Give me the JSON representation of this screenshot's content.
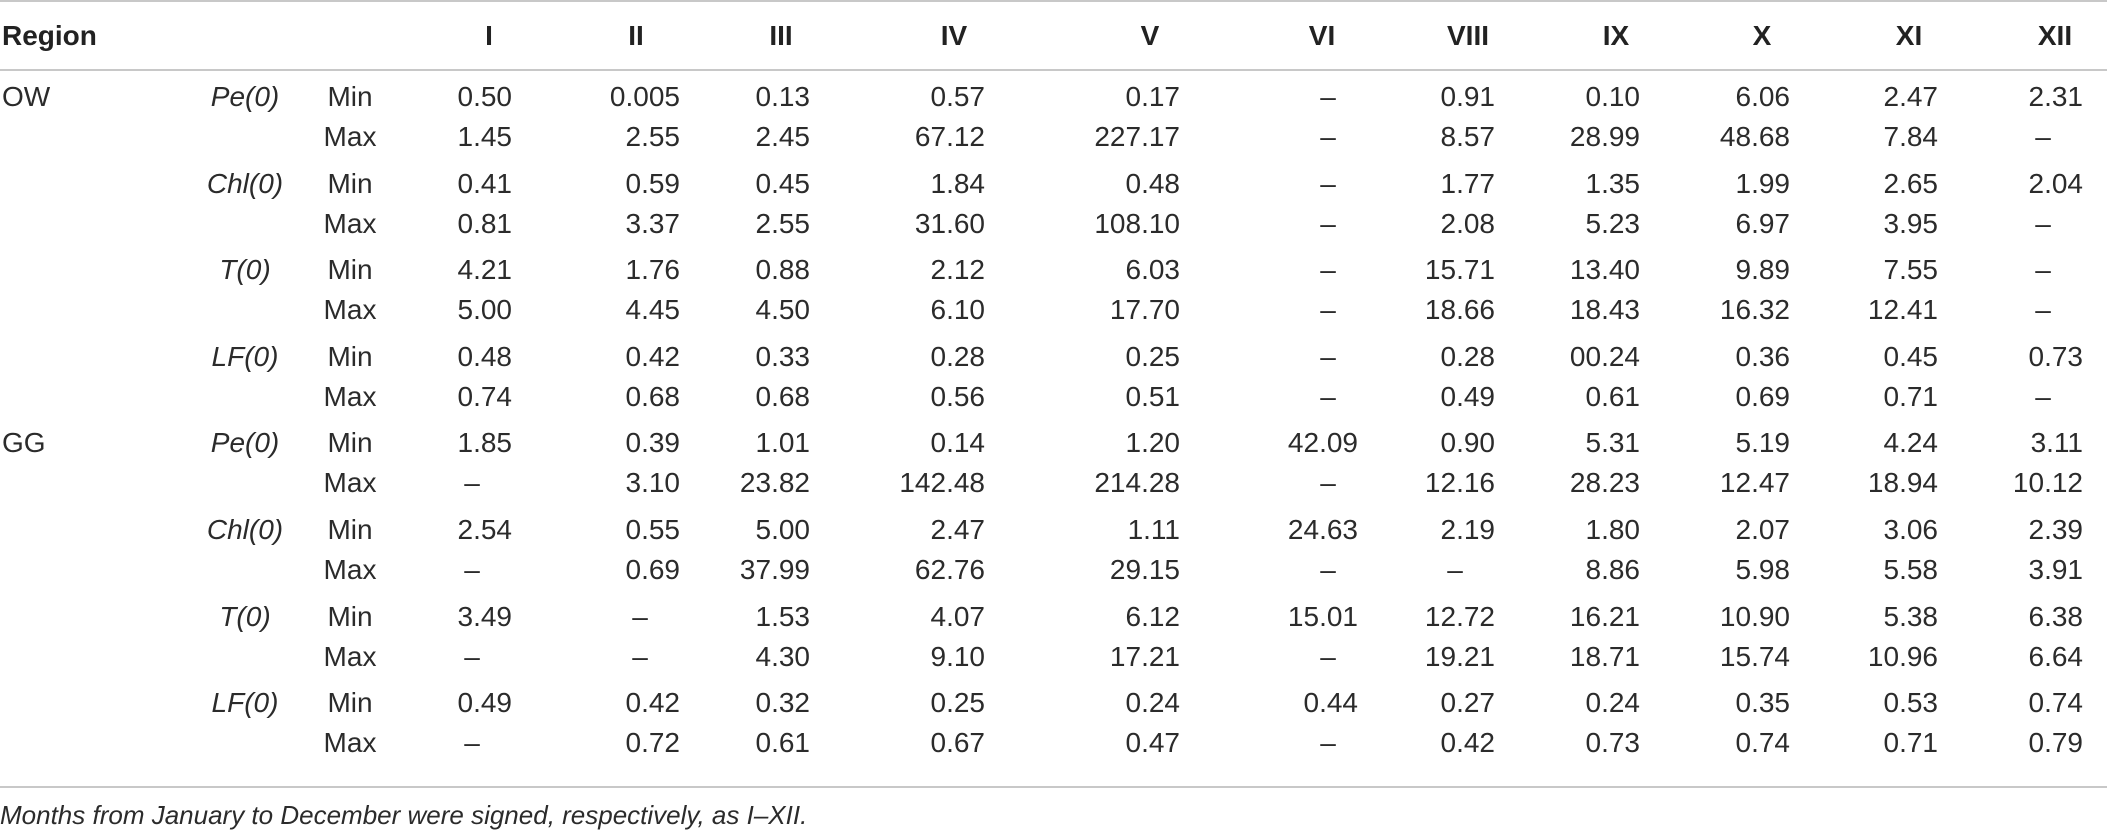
{
  "header": {
    "region": "Region",
    "months": [
      "I",
      "II",
      "III",
      "IV",
      "V",
      "VI",
      "VIII",
      "IX",
      "X",
      "XI",
      "XII"
    ]
  },
  "rows": [
    {
      "region": "OW",
      "variable": "Pe(0)",
      "stat": "Min",
      "values": [
        "0.50",
        "0.005",
        "0.13",
        "0.57",
        "0.17",
        "–",
        "0.91",
        "0.10",
        "6.06",
        "2.47",
        "2.31"
      ]
    },
    {
      "region": "",
      "variable": "",
      "stat": "Max",
      "values": [
        "1.45",
        "2.55",
        "2.45",
        "67.12",
        "227.17",
        "–",
        "8.57",
        "28.99",
        "48.68",
        "7.84",
        "–"
      ]
    },
    {
      "region": "",
      "variable": "Chl(0)",
      "stat": "Min",
      "values": [
        "0.41",
        "0.59",
        "0.45",
        "1.84",
        "0.48",
        "–",
        "1.77",
        "1.35",
        "1.99",
        "2.65",
        "2.04"
      ]
    },
    {
      "region": "",
      "variable": "",
      "stat": "Max",
      "values": [
        "0.81",
        "3.37",
        "2.55",
        "31.60",
        "108.10",
        "–",
        "2.08",
        "5.23",
        "6.97",
        "3.95",
        "–"
      ]
    },
    {
      "region": "",
      "variable": "T(0)",
      "stat": "Min",
      "values": [
        "4.21",
        "1.76",
        "0.88",
        "2.12",
        "6.03",
        "–",
        "15.71",
        "13.40",
        "9.89",
        "7.55",
        "–"
      ]
    },
    {
      "region": "",
      "variable": "",
      "stat": "Max",
      "values": [
        "5.00",
        "4.45",
        "4.50",
        "6.10",
        "17.70",
        "–",
        "18.66",
        "18.43",
        "16.32",
        "12.41",
        "–"
      ]
    },
    {
      "region": "",
      "variable": "LF(0)",
      "stat": "Min",
      "values": [
        "0.48",
        "0.42",
        "0.33",
        "0.28",
        "0.25",
        "–",
        "0.28",
        "00.24",
        "0.36",
        "0.45",
        "0.73"
      ]
    },
    {
      "region": "",
      "variable": "",
      "stat": "Max",
      "values": [
        "0.74",
        "0.68",
        "0.68",
        "0.56",
        "0.51",
        "–",
        "0.49",
        "0.61",
        "0.69",
        "0.71",
        "–"
      ]
    },
    {
      "region": "GG",
      "variable": "Pe(0)",
      "stat": "Min",
      "values": [
        "1.85",
        "0.39",
        "1.01",
        "0.14",
        "1.20",
        "42.09",
        "0.90",
        "5.31",
        "5.19",
        "4.24",
        "3.11"
      ]
    },
    {
      "region": "",
      "variable": "",
      "stat": "Max",
      "values": [
        "–",
        "3.10",
        "23.82",
        "142.48",
        "214.28",
        "–",
        "12.16",
        "28.23",
        "12.47",
        "18.94",
        "10.12"
      ]
    },
    {
      "region": "",
      "variable": "Chl(0)",
      "stat": "Min",
      "values": [
        "2.54",
        "0.55",
        "5.00",
        "2.47",
        "1.11",
        "24.63",
        "2.19",
        "1.80",
        "2.07",
        "3.06",
        "2.39"
      ]
    },
    {
      "region": "",
      "variable": "",
      "stat": "Max",
      "values": [
        "–",
        "0.69",
        "37.99",
        "62.76",
        "29.15",
        "–",
        "–",
        "8.86",
        "5.98",
        "5.58",
        "3.91"
      ]
    },
    {
      "region": "",
      "variable": "T(0)",
      "stat": "Min",
      "values": [
        "3.49",
        "–",
        "1.53",
        "4.07",
        "6.12",
        "15.01",
        "12.72",
        "16.21",
        "10.90",
        "5.38",
        "6.38"
      ]
    },
    {
      "region": "",
      "variable": "",
      "stat": "Max",
      "values": [
        "–",
        "–",
        "4.30",
        "9.10",
        "17.21",
        "–",
        "19.21",
        "18.71",
        "15.74",
        "10.96",
        "6.64"
      ]
    },
    {
      "region": "",
      "variable": "LF(0)",
      "stat": "Min",
      "values": [
        "0.49",
        "0.42",
        "0.32",
        "0.25",
        "0.24",
        "0.44",
        "0.27",
        "0.24",
        "0.35",
        "0.53",
        "0.74"
      ]
    },
    {
      "region": "",
      "variable": "",
      "stat": "Max",
      "values": [
        "–",
        "0.72",
        "0.61",
        "0.67",
        "0.47",
        "–",
        "0.42",
        "0.73",
        "0.74",
        "0.71",
        "0.79"
      ]
    }
  ],
  "footnote": "Months from January to December were signed, respectively, as I–XII."
}
